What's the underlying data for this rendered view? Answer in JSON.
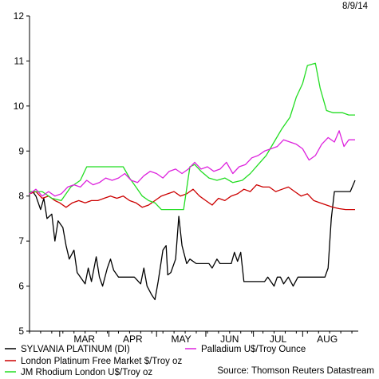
{
  "date_label": "8/9/14",
  "source": "Source: Thomson Reuters Datastream",
  "chart_data": {
    "type": "line",
    "ylim": [
      5,
      12
    ],
    "yticks": [
      5,
      6,
      7,
      8,
      9,
      10,
      11,
      12
    ],
    "x_start": "2014-02-10",
    "x_end": "2014-09-05",
    "month_labels": [
      {
        "label": "MAR",
        "date": "2014-03-01"
      },
      {
        "label": "APR",
        "date": "2014-04-01"
      },
      {
        "label": "MAY",
        "date": "2014-05-01"
      },
      {
        "label": "JUN",
        "date": "2014-06-01"
      },
      {
        "label": "JUL",
        "date": "2014-07-01"
      },
      {
        "label": "AUG",
        "date": "2014-08-01"
      }
    ],
    "series": [
      {
        "name": "SYLVANIA PLATINUM (DI)",
        "color": "#000000",
        "points": [
          [
            "2014-02-10",
            8.05
          ],
          [
            "2014-02-12",
            8.1
          ],
          [
            "2014-02-14",
            8.0
          ],
          [
            "2014-02-17",
            7.7
          ],
          [
            "2014-02-19",
            7.95
          ],
          [
            "2014-02-21",
            7.5
          ],
          [
            "2014-02-24",
            7.6
          ],
          [
            "2014-02-26",
            7.0
          ],
          [
            "2014-02-28",
            7.45
          ],
          [
            "2014-03-03",
            7.3
          ],
          [
            "2014-03-05",
            6.9
          ],
          [
            "2014-03-07",
            6.6
          ],
          [
            "2014-03-10",
            6.8
          ],
          [
            "2014-03-12",
            6.3
          ],
          [
            "2014-03-14",
            6.2
          ],
          [
            "2014-03-17",
            6.05
          ],
          [
            "2014-03-19",
            6.4
          ],
          [
            "2014-03-21",
            6.1
          ],
          [
            "2014-03-24",
            6.65
          ],
          [
            "2014-03-26",
            6.2
          ],
          [
            "2014-03-28",
            6.0
          ],
          [
            "2014-03-31",
            6.4
          ],
          [
            "2014-04-02",
            6.6
          ],
          [
            "2014-04-04",
            6.35
          ],
          [
            "2014-04-07",
            6.2
          ],
          [
            "2014-04-10",
            6.2
          ],
          [
            "2014-04-14",
            6.2
          ],
          [
            "2014-04-17",
            6.2
          ],
          [
            "2014-04-21",
            6.05
          ],
          [
            "2014-04-23",
            6.4
          ],
          [
            "2014-04-25",
            6.0
          ],
          [
            "2014-04-28",
            5.8
          ],
          [
            "2014-04-30",
            5.7
          ],
          [
            "2014-05-02",
            6.1
          ],
          [
            "2014-05-05",
            6.8
          ],
          [
            "2014-05-07",
            6.9
          ],
          [
            "2014-05-08",
            6.25
          ],
          [
            "2014-05-10",
            6.3
          ],
          [
            "2014-05-13",
            6.6
          ],
          [
            "2014-05-15",
            7.55
          ],
          [
            "2014-05-17",
            6.9
          ],
          [
            "2014-05-20",
            6.5
          ],
          [
            "2014-05-22",
            6.6
          ],
          [
            "2014-05-26",
            6.5
          ],
          [
            "2014-05-30",
            6.5
          ],
          [
            "2014-06-03",
            6.5
          ],
          [
            "2014-06-05",
            6.4
          ],
          [
            "2014-06-08",
            6.6
          ],
          [
            "2014-06-10",
            6.5
          ],
          [
            "2014-06-13",
            6.5
          ],
          [
            "2014-06-17",
            6.5
          ],
          [
            "2014-06-19",
            6.75
          ],
          [
            "2014-06-21",
            6.55
          ],
          [
            "2014-06-23",
            6.75
          ],
          [
            "2014-06-25",
            6.1
          ],
          [
            "2014-06-30",
            6.1
          ],
          [
            "2014-07-04",
            6.1
          ],
          [
            "2014-07-08",
            6.1
          ],
          [
            "2014-07-10",
            6.2
          ],
          [
            "2014-07-14",
            6.0
          ],
          [
            "2014-07-16",
            6.2
          ],
          [
            "2014-07-18",
            6.2
          ],
          [
            "2014-07-20",
            6.05
          ],
          [
            "2014-07-23",
            6.2
          ],
          [
            "2014-07-26",
            6.0
          ],
          [
            "2014-07-29",
            6.2
          ],
          [
            "2014-08-01",
            6.2
          ],
          [
            "2014-08-06",
            6.2
          ],
          [
            "2014-08-09",
            6.2
          ],
          [
            "2014-08-12",
            6.2
          ],
          [
            "2014-08-15",
            6.2
          ],
          [
            "2014-08-17",
            6.4
          ],
          [
            "2014-08-19",
            7.5
          ],
          [
            "2014-08-21",
            8.1
          ],
          [
            "2014-08-24",
            8.1
          ],
          [
            "2014-08-28",
            8.1
          ],
          [
            "2014-08-31",
            8.1
          ],
          [
            "2014-09-03",
            8.35
          ]
        ]
      },
      {
        "name": "London Platinum Free Market $/Troy oz",
        "color": "#cc0000",
        "points": [
          [
            "2014-02-10",
            8.05
          ],
          [
            "2014-02-14",
            8.1
          ],
          [
            "2014-02-18",
            7.95
          ],
          [
            "2014-02-22",
            8.0
          ],
          [
            "2014-02-26",
            7.9
          ],
          [
            "2014-03-01",
            7.85
          ],
          [
            "2014-03-05",
            7.75
          ],
          [
            "2014-03-09",
            7.85
          ],
          [
            "2014-03-13",
            7.9
          ],
          [
            "2014-03-17",
            7.85
          ],
          [
            "2014-03-21",
            7.9
          ],
          [
            "2014-03-25",
            7.9
          ],
          [
            "2014-03-29",
            7.95
          ],
          [
            "2014-04-02",
            8.0
          ],
          [
            "2014-04-06",
            7.95
          ],
          [
            "2014-04-10",
            8.0
          ],
          [
            "2014-04-14",
            7.9
          ],
          [
            "2014-04-18",
            7.85
          ],
          [
            "2014-04-22",
            7.75
          ],
          [
            "2014-04-26",
            7.8
          ],
          [
            "2014-04-30",
            7.9
          ],
          [
            "2014-05-04",
            8.0
          ],
          [
            "2014-05-08",
            8.05
          ],
          [
            "2014-05-12",
            8.1
          ],
          [
            "2014-05-16",
            8.0
          ],
          [
            "2014-05-20",
            8.05
          ],
          [
            "2014-05-24",
            8.15
          ],
          [
            "2014-05-28",
            8.0
          ],
          [
            "2014-06-01",
            7.9
          ],
          [
            "2014-06-05",
            7.8
          ],
          [
            "2014-06-09",
            7.95
          ],
          [
            "2014-06-13",
            7.9
          ],
          [
            "2014-06-17",
            8.0
          ],
          [
            "2014-06-21",
            8.05
          ],
          [
            "2014-06-25",
            8.15
          ],
          [
            "2014-06-29",
            8.1
          ],
          [
            "2014-07-03",
            8.25
          ],
          [
            "2014-07-07",
            8.2
          ],
          [
            "2014-07-11",
            8.2
          ],
          [
            "2014-07-15",
            8.1
          ],
          [
            "2014-07-19",
            8.15
          ],
          [
            "2014-07-23",
            8.2
          ],
          [
            "2014-07-27",
            8.1
          ],
          [
            "2014-07-31",
            8.0
          ],
          [
            "2014-08-04",
            8.05
          ],
          [
            "2014-08-08",
            7.9
          ],
          [
            "2014-08-12",
            7.85
          ],
          [
            "2014-08-16",
            7.8
          ],
          [
            "2014-08-20",
            7.75
          ],
          [
            "2014-08-24",
            7.72
          ],
          [
            "2014-08-28",
            7.7
          ],
          [
            "2014-09-03",
            7.7
          ]
        ]
      },
      {
        "name": "JM Rhodium London U$/Troy oz",
        "color": "#22dd22",
        "points": [
          [
            "2014-02-10",
            8.1
          ],
          [
            "2014-02-18",
            8.1
          ],
          [
            "2014-02-24",
            7.95
          ],
          [
            "2014-03-02",
            7.9
          ],
          [
            "2014-03-08",
            8.2
          ],
          [
            "2014-03-14",
            8.35
          ],
          [
            "2014-03-18",
            8.65
          ],
          [
            "2014-04-10",
            8.65
          ],
          [
            "2014-04-14",
            8.4
          ],
          [
            "2014-04-18",
            8.2
          ],
          [
            "2014-04-22",
            8.0
          ],
          [
            "2014-04-26",
            7.9
          ],
          [
            "2014-04-30",
            7.85
          ],
          [
            "2014-05-04",
            7.7
          ],
          [
            "2014-05-18",
            7.7
          ],
          [
            "2014-05-22",
            8.65
          ],
          [
            "2014-05-25",
            8.7
          ],
          [
            "2014-05-29",
            8.55
          ],
          [
            "2014-06-03",
            8.4
          ],
          [
            "2014-06-08",
            8.35
          ],
          [
            "2014-06-13",
            8.4
          ],
          [
            "2014-06-18",
            8.3
          ],
          [
            "2014-06-24",
            8.35
          ],
          [
            "2014-06-29",
            8.5
          ],
          [
            "2014-07-04",
            8.7
          ],
          [
            "2014-07-09",
            8.9
          ],
          [
            "2014-07-14",
            9.2
          ],
          [
            "2014-07-19",
            9.5
          ],
          [
            "2014-07-24",
            9.75
          ],
          [
            "2014-07-28",
            10.2
          ],
          [
            "2014-08-01",
            10.5
          ],
          [
            "2014-08-04",
            10.9
          ],
          [
            "2014-08-09",
            10.95
          ],
          [
            "2014-08-12",
            10.4
          ],
          [
            "2014-08-16",
            9.9
          ],
          [
            "2014-08-20",
            9.85
          ],
          [
            "2014-08-26",
            9.85
          ],
          [
            "2014-08-30",
            9.8
          ],
          [
            "2014-09-03",
            9.8
          ]
        ]
      },
      {
        "name": "Palladium U$/Troy Ounce",
        "color": "#dd22dd",
        "points": [
          [
            "2014-02-10",
            8.05
          ],
          [
            "2014-02-14",
            8.15
          ],
          [
            "2014-02-18",
            8.0
          ],
          [
            "2014-02-22",
            8.1
          ],
          [
            "2014-02-26",
            8.0
          ],
          [
            "2014-03-02",
            8.05
          ],
          [
            "2014-03-06",
            8.2
          ],
          [
            "2014-03-10",
            8.25
          ],
          [
            "2014-03-14",
            8.2
          ],
          [
            "2014-03-18",
            8.35
          ],
          [
            "2014-03-22",
            8.25
          ],
          [
            "2014-03-26",
            8.3
          ],
          [
            "2014-03-30",
            8.4
          ],
          [
            "2014-04-03",
            8.35
          ],
          [
            "2014-04-07",
            8.4
          ],
          [
            "2014-04-11",
            8.5
          ],
          [
            "2014-04-15",
            8.35
          ],
          [
            "2014-04-19",
            8.3
          ],
          [
            "2014-04-23",
            8.45
          ],
          [
            "2014-04-27",
            8.55
          ],
          [
            "2014-05-01",
            8.5
          ],
          [
            "2014-05-05",
            8.4
          ],
          [
            "2014-05-09",
            8.55
          ],
          [
            "2014-05-13",
            8.6
          ],
          [
            "2014-05-17",
            8.5
          ],
          [
            "2014-05-21",
            8.6
          ],
          [
            "2014-05-25",
            8.75
          ],
          [
            "2014-05-29",
            8.6
          ],
          [
            "2014-06-02",
            8.65
          ],
          [
            "2014-06-06",
            8.55
          ],
          [
            "2014-06-10",
            8.6
          ],
          [
            "2014-06-14",
            8.75
          ],
          [
            "2014-06-18",
            8.5
          ],
          [
            "2014-06-22",
            8.65
          ],
          [
            "2014-06-26",
            8.7
          ],
          [
            "2014-06-30",
            8.85
          ],
          [
            "2014-07-04",
            8.9
          ],
          [
            "2014-07-08",
            9.0
          ],
          [
            "2014-07-12",
            9.05
          ],
          [
            "2014-07-16",
            9.1
          ],
          [
            "2014-07-20",
            9.25
          ],
          [
            "2014-07-24",
            9.2
          ],
          [
            "2014-07-28",
            9.15
          ],
          [
            "2014-08-01",
            9.05
          ],
          [
            "2014-08-05",
            8.8
          ],
          [
            "2014-08-09",
            8.9
          ],
          [
            "2014-08-13",
            9.15
          ],
          [
            "2014-08-17",
            9.3
          ],
          [
            "2014-08-21",
            9.2
          ],
          [
            "2014-08-24",
            9.45
          ],
          [
            "2014-08-27",
            9.1
          ],
          [
            "2014-08-30",
            9.25
          ],
          [
            "2014-09-03",
            9.25
          ]
        ]
      }
    ]
  }
}
